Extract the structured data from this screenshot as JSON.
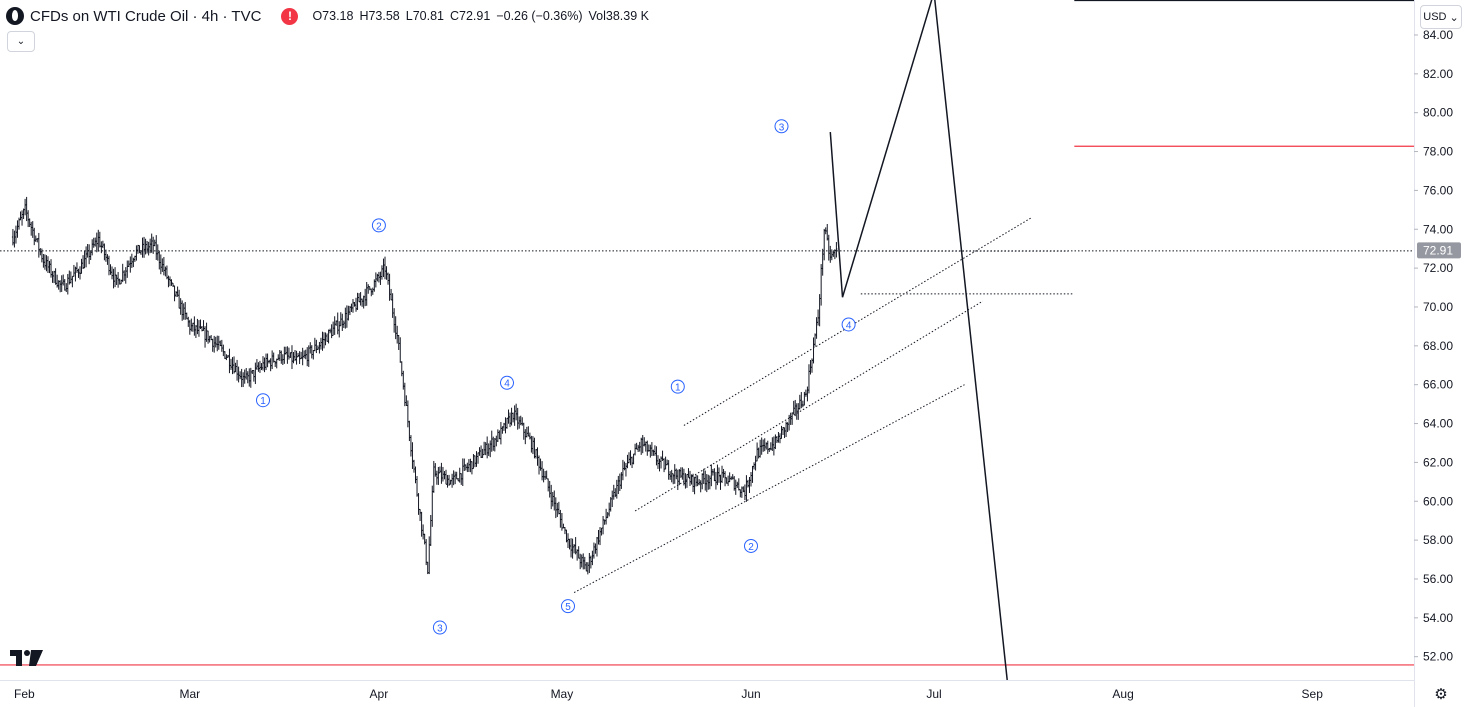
{
  "header": {
    "title": "CFDs on WTI Crude Oil · 4h · TVC",
    "open": "O73.18",
    "high": "H73.58",
    "low": "L70.81",
    "close": "C72.91",
    "change": "−0.26 (−0.36%)",
    "volume": "Vol38.39 K",
    "alert_glyph": "!"
  },
  "controls": {
    "collapse_glyph": "⌄",
    "currency": "USD",
    "currency_caret": "⌄",
    "settings_glyph": "⚙"
  },
  "colors": {
    "price_line": "#131722",
    "red_level": "#f23645",
    "wave_label": "#2962ff",
    "axis_text": "#131722",
    "last_price_bg": "#9598a1"
  },
  "chart_data": {
    "type": "candlestick",
    "symbol": "CFDs on WTI Crude Oil",
    "timeframe": "4h",
    "x_tick_labels": [
      "Feb",
      "Mar",
      "Apr",
      "May",
      "Jun",
      "Jul",
      "Aug",
      "Sep"
    ],
    "y_tick_labels": [
      "84.00",
      "82.00",
      "80.00",
      "78.00",
      "76.00",
      "74.00",
      "72.00",
      "70.00",
      "68.00",
      "66.00",
      "64.00",
      "62.00",
      "60.00",
      "58.00",
      "56.00",
      "54.00",
      "52.00"
    ],
    "y_range": [
      50.8,
      85.8
    ],
    "last_price": "72.91",
    "price_path": [
      [
        "2025-01-31",
        73.6
      ],
      [
        "2025-02-02",
        75.0
      ],
      [
        "2025-02-05",
        72.4
      ],
      [
        "2025-02-08",
        71.0
      ],
      [
        "2025-02-11",
        72.0
      ],
      [
        "2025-02-14",
        73.5
      ],
      [
        "2025-02-17",
        71.2
      ],
      [
        "2025-02-20",
        72.8
      ],
      [
        "2025-02-23",
        73.2
      ],
      [
        "2025-02-26",
        71.0
      ],
      [
        "2025-03-01",
        69.0
      ],
      [
        "2025-03-04",
        68.5
      ],
      [
        "2025-03-07",
        67.5
      ],
      [
        "2025-03-10",
        66.2
      ],
      [
        "2025-03-13",
        67.0
      ],
      [
        "2025-03-16",
        67.5
      ],
      [
        "2025-03-19",
        67.2
      ],
      [
        "2025-03-22",
        68.0
      ],
      [
        "2025-03-25",
        69.0
      ],
      [
        "2025-03-28",
        70.0
      ],
      [
        "2025-04-01",
        71.5
      ],
      [
        "2025-04-02",
        72.0
      ],
      [
        "2025-04-04",
        68.5
      ],
      [
        "2025-04-07",
        61.0
      ],
      [
        "2025-04-09",
        56.5
      ],
      [
        "2025-04-10",
        61.5
      ],
      [
        "2025-04-13",
        61.0
      ],
      [
        "2025-04-17",
        62.2
      ],
      [
        "2025-04-21",
        63.5
      ],
      [
        "2025-04-23",
        64.5
      ],
      [
        "2025-04-26",
        63.0
      ],
      [
        "2025-04-29",
        60.5
      ],
      [
        "2025-05-02",
        58.0
      ],
      [
        "2025-05-05",
        56.5
      ],
      [
        "2025-05-08",
        59.0
      ],
      [
        "2025-05-11",
        61.5
      ],
      [
        "2025-05-14",
        63.0
      ],
      [
        "2025-05-17",
        62.0
      ],
      [
        "2025-05-20",
        61.3
      ],
      [
        "2025-05-23",
        61.0
      ],
      [
        "2025-05-26",
        61.3
      ],
      [
        "2025-05-29",
        61.0
      ],
      [
        "2025-05-31",
        60.5
      ],
      [
        "2025-06-02",
        62.5
      ],
      [
        "2025-06-05",
        63.0
      ],
      [
        "2025-06-08",
        64.5
      ],
      [
        "2025-06-10",
        65.5
      ],
      [
        "2025-06-11",
        67.5
      ],
      [
        "2025-06-12",
        69.5
      ],
      [
        "2025-06-13",
        74.0
      ],
      [
        "2025-06-14",
        72.5
      ],
      [
        "2025-06-15",
        72.9
      ]
    ],
    "markers": [
      {
        "label": "1",
        "time": "2025-03-13",
        "price": 65.2
      },
      {
        "label": "2",
        "time": "2025-04-01",
        "price": 74.2
      },
      {
        "label": "3",
        "time": "2025-04-11",
        "price": 53.5
      },
      {
        "label": "4",
        "time": "2025-04-22",
        "price": 66.1
      },
      {
        "label": "5",
        "time": "2025-05-02",
        "price": 54.6
      },
      {
        "label": "1",
        "time": "2025-05-20",
        "price": 65.9
      },
      {
        "label": "2",
        "time": "2025-06-01",
        "price": 57.7
      },
      {
        "label": "3",
        "time": "2025-06-06",
        "price": 79.3
      },
      {
        "label": "4",
        "time": "2025-06-17",
        "price": 69.1
      }
    ],
    "projection_path": [
      [
        "2025-06-14",
        79.0
      ],
      [
        "2025-06-16",
        70.5
      ],
      [
        "2025-07-01",
        86.2
      ],
      [
        "2025-07-13",
        50.8
      ]
    ],
    "channel_lines": [
      {
        "from": [
          "2025-05-21",
          63.9
        ],
        "to": [
          "2025-07-17",
          74.6
        ]
      },
      {
        "from": [
          "2025-05-13",
          59.5
        ],
        "to": [
          "2025-07-09",
          70.3
        ]
      },
      {
        "from": [
          "2025-05-03",
          55.3
        ],
        "to": [
          "2025-07-06",
          66.0
        ]
      }
    ],
    "horizontal_levels": [
      {
        "price": 72.91,
        "style": "dotted",
        "full_width": true
      },
      {
        "price": 72.9,
        "style": "dotted",
        "from": "2025-06-19",
        "to": "2025-07-23"
      },
      {
        "price": 70.7,
        "style": "dotted",
        "from": "2025-06-19",
        "to": "2025-07-24"
      },
      {
        "price": 78.3,
        "style": "solid",
        "color": "red",
        "from": "2025-07-24"
      },
      {
        "price": 85.8,
        "style": "solid",
        "color": "black",
        "from": "2025-07-24"
      },
      {
        "price": 51.6,
        "style": "solid",
        "color": "red",
        "full_width": true
      }
    ]
  }
}
